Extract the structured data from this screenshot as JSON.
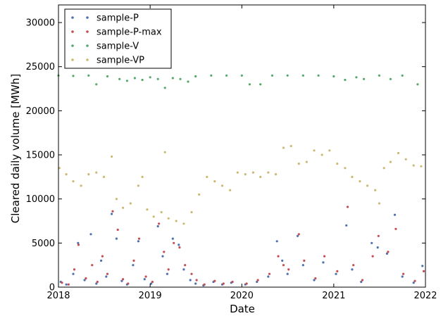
{
  "chart_data": {
    "type": "scatter",
    "xlabel": "Date",
    "ylabel": "Cleared daily volume [MWh]",
    "xlim": [
      "2018-01-01",
      "2022-01-01"
    ],
    "ylim": [
      0,
      32000
    ],
    "x_ticks": [
      "2018",
      "2019",
      "2020",
      "2021",
      "2022"
    ],
    "y_ticks": [
      0,
      5000,
      10000,
      15000,
      20000,
      25000,
      30000
    ],
    "grid": false,
    "legend_position": "upper-left",
    "series": [
      {
        "name": "sample-P",
        "color": "#4c72b0",
        "points": [
          [
            "2018-01-10",
            600
          ],
          [
            "2018-02-01",
            300
          ],
          [
            "2018-03-01",
            1500
          ],
          [
            "2018-03-20",
            5000
          ],
          [
            "2018-04-15",
            800
          ],
          [
            "2018-05-10",
            6000
          ],
          [
            "2018-06-01",
            400
          ],
          [
            "2018-06-20",
            3000
          ],
          [
            "2018-07-10",
            1200
          ],
          [
            "2018-08-01",
            8300
          ],
          [
            "2018-08-20",
            5500
          ],
          [
            "2018-09-10",
            700
          ],
          [
            "2018-10-01",
            300
          ],
          [
            "2018-10-25",
            2500
          ],
          [
            "2018-11-15",
            5200
          ],
          [
            "2018-12-10",
            900
          ],
          [
            "2019-01-05",
            400
          ],
          [
            "2019-02-01",
            6900
          ],
          [
            "2019-02-20",
            3500
          ],
          [
            "2019-03-10",
            1500
          ],
          [
            "2019-04-01",
            5500
          ],
          [
            "2019-04-25",
            4800
          ],
          [
            "2019-05-15",
            2000
          ],
          [
            "2019-06-10",
            800
          ],
          [
            "2019-07-01",
            400
          ],
          [
            "2019-08-01",
            200
          ],
          [
            "2019-09-10",
            600
          ],
          [
            "2019-10-15",
            300
          ],
          [
            "2019-11-20",
            500
          ],
          [
            "2020-01-15",
            300
          ],
          [
            "2020-03-01",
            600
          ],
          [
            "2020-04-15",
            1200
          ],
          [
            "2020-05-20",
            5200
          ],
          [
            "2020-06-10",
            3000
          ],
          [
            "2020-07-01",
            1500
          ],
          [
            "2020-08-10",
            5800
          ],
          [
            "2020-09-01",
            2500
          ],
          [
            "2020-10-15",
            800
          ],
          [
            "2020-11-20",
            2800
          ],
          [
            "2021-01-10",
            1500
          ],
          [
            "2021-02-20",
            7000
          ],
          [
            "2021-03-15",
            2000
          ],
          [
            "2021-04-20",
            600
          ],
          [
            "2021-06-01",
            5000
          ],
          [
            "2021-06-25",
            4500
          ],
          [
            "2021-08-01",
            3800
          ],
          [
            "2021-09-01",
            8200
          ],
          [
            "2021-10-01",
            1200
          ],
          [
            "2021-11-15",
            500
          ],
          [
            "2021-12-20",
            2400
          ]
        ]
      },
      {
        "name": "sample-P-max",
        "color": "#c44e52",
        "points": [
          [
            "2018-01-15",
            500
          ],
          [
            "2018-02-10",
            300
          ],
          [
            "2018-03-05",
            2000
          ],
          [
            "2018-03-22",
            4800
          ],
          [
            "2018-04-20",
            1000
          ],
          [
            "2018-05-15",
            2500
          ],
          [
            "2018-06-05",
            600
          ],
          [
            "2018-06-25",
            3500
          ],
          [
            "2018-07-15",
            1500
          ],
          [
            "2018-08-05",
            8600
          ],
          [
            "2018-08-25",
            6500
          ],
          [
            "2018-09-15",
            900
          ],
          [
            "2018-10-05",
            400
          ],
          [
            "2018-10-28",
            3000
          ],
          [
            "2018-11-18",
            5500
          ],
          [
            "2018-12-15",
            1200
          ],
          [
            "2019-01-10",
            600
          ],
          [
            "2019-02-05",
            7200
          ],
          [
            "2019-02-25",
            4000
          ],
          [
            "2019-03-15",
            2000
          ],
          [
            "2019-04-05",
            5000
          ],
          [
            "2019-04-28",
            4500
          ],
          [
            "2019-05-20",
            2500
          ],
          [
            "2019-06-15",
            1500
          ],
          [
            "2019-07-05",
            800
          ],
          [
            "2019-08-05",
            300
          ],
          [
            "2019-09-15",
            700
          ],
          [
            "2019-10-20",
            400
          ],
          [
            "2019-11-25",
            600
          ],
          [
            "2020-01-20",
            400
          ],
          [
            "2020-03-05",
            800
          ],
          [
            "2020-04-20",
            1500
          ],
          [
            "2020-05-25",
            3500
          ],
          [
            "2020-06-15",
            2500
          ],
          [
            "2020-07-05",
            2000
          ],
          [
            "2020-08-15",
            6000
          ],
          [
            "2020-09-05",
            3000
          ],
          [
            "2020-10-20",
            1000
          ],
          [
            "2020-11-25",
            3500
          ],
          [
            "2021-01-15",
            1800
          ],
          [
            "2021-02-25",
            9100
          ],
          [
            "2021-03-20",
            2500
          ],
          [
            "2021-04-25",
            800
          ],
          [
            "2021-06-05",
            3500
          ],
          [
            "2021-06-28",
            5800
          ],
          [
            "2021-08-05",
            4000
          ],
          [
            "2021-09-05",
            6600
          ],
          [
            "2021-10-05",
            1500
          ],
          [
            "2021-11-20",
            700
          ],
          [
            "2021-12-25",
            1800
          ]
        ]
      },
      {
        "name": "sample-V",
        "color": "#55a868",
        "points": [
          [
            "2018-01-01",
            24000
          ],
          [
            "2018-03-01",
            23950
          ],
          [
            "2018-05-01",
            24000
          ],
          [
            "2018-06-01",
            23000
          ],
          [
            "2018-07-15",
            23900
          ],
          [
            "2018-09-01",
            23600
          ],
          [
            "2018-10-01",
            23400
          ],
          [
            "2018-11-01",
            23700
          ],
          [
            "2018-12-01",
            23500
          ],
          [
            "2019-01-01",
            23800
          ],
          [
            "2019-02-01",
            23600
          ],
          [
            "2019-03-01",
            22600
          ],
          [
            "2019-04-01",
            23700
          ],
          [
            "2019-05-01",
            23600
          ],
          [
            "2019-06-01",
            23300
          ],
          [
            "2019-07-01",
            23900
          ],
          [
            "2019-09-01",
            24000
          ],
          [
            "2019-11-01",
            24000
          ],
          [
            "2020-01-01",
            24000
          ],
          [
            "2020-02-01",
            23000
          ],
          [
            "2020-03-15",
            23000
          ],
          [
            "2020-05-01",
            24000
          ],
          [
            "2020-07-01",
            24000
          ],
          [
            "2020-09-01",
            24000
          ],
          [
            "2020-11-01",
            24000
          ],
          [
            "2021-01-01",
            23900
          ],
          [
            "2021-02-15",
            23500
          ],
          [
            "2021-04-01",
            23800
          ],
          [
            "2021-05-01",
            23600
          ],
          [
            "2021-07-01",
            24000
          ],
          [
            "2021-08-15",
            23600
          ],
          [
            "2021-10-01",
            24000
          ],
          [
            "2021-12-01",
            23000
          ]
        ]
      },
      {
        "name": "sample-VP",
        "color": "#ccb974",
        "points": [
          [
            "2018-01-05",
            13500
          ],
          [
            "2018-02-01",
            12800
          ],
          [
            "2018-03-01",
            12000
          ],
          [
            "2018-04-01",
            11500
          ],
          [
            "2018-05-01",
            12800
          ],
          [
            "2018-06-01",
            13000
          ],
          [
            "2018-07-01",
            12500
          ],
          [
            "2018-08-01",
            14800
          ],
          [
            "2018-08-20",
            10000
          ],
          [
            "2018-09-15",
            9000
          ],
          [
            "2018-10-15",
            9500
          ],
          [
            "2018-11-15",
            11500
          ],
          [
            "2018-12-01",
            12500
          ],
          [
            "2018-12-20",
            8800
          ],
          [
            "2019-01-15",
            8000
          ],
          [
            "2019-02-15",
            8500
          ],
          [
            "2019-03-01",
            15300
          ],
          [
            "2019-03-15",
            7800
          ],
          [
            "2019-04-15",
            7500
          ],
          [
            "2019-05-15",
            7200
          ],
          [
            "2019-06-15",
            8500
          ],
          [
            "2019-07-15",
            10500
          ],
          [
            "2019-08-15",
            12500
          ],
          [
            "2019-09-15",
            12000
          ],
          [
            "2019-10-15",
            11500
          ],
          [
            "2019-11-15",
            11000
          ],
          [
            "2019-12-15",
            13000
          ],
          [
            "2020-01-15",
            12800
          ],
          [
            "2020-02-15",
            13000
          ],
          [
            "2020-03-15",
            12500
          ],
          [
            "2020-04-15",
            13000
          ],
          [
            "2020-05-15",
            12800
          ],
          [
            "2020-06-15",
            15800
          ],
          [
            "2020-07-15",
            16000
          ],
          [
            "2020-08-15",
            14000
          ],
          [
            "2020-09-15",
            14200
          ],
          [
            "2020-10-15",
            15500
          ],
          [
            "2020-11-15",
            15000
          ],
          [
            "2020-12-15",
            15500
          ],
          [
            "2021-01-15",
            14000
          ],
          [
            "2021-02-15",
            13500
          ],
          [
            "2021-03-15",
            12500
          ],
          [
            "2021-04-15",
            12000
          ],
          [
            "2021-05-15",
            11500
          ],
          [
            "2021-06-15",
            11000
          ],
          [
            "2021-07-01",
            9500
          ],
          [
            "2021-07-20",
            13500
          ],
          [
            "2021-08-15",
            14200
          ],
          [
            "2021-09-15",
            15200
          ],
          [
            "2021-10-15",
            14500
          ],
          [
            "2021-11-15",
            13800
          ],
          [
            "2021-12-15",
            13700
          ]
        ]
      }
    ]
  }
}
